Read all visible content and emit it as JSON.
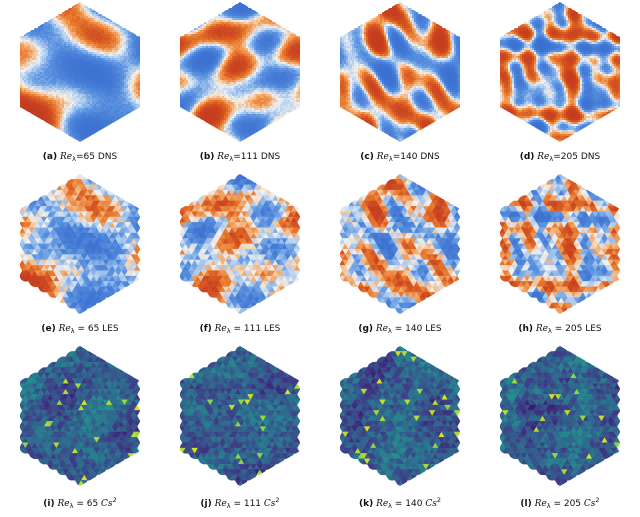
{
  "figure": {
    "panels": [
      {
        "tag": "(a)",
        "re_symbol": "Re",
        "re_sub": "λ",
        "eq": "=",
        "value": "65",
        "suffix": "DNS",
        "cs2": false,
        "kind": "dns",
        "seed": 11,
        "scale": 0.055
      },
      {
        "tag": "(b)",
        "re_symbol": "Re",
        "re_sub": "λ",
        "eq": "=",
        "value": "111",
        "suffix": "DNS",
        "cs2": false,
        "kind": "dns",
        "seed": 23,
        "scale": 0.085
      },
      {
        "tag": "(c)",
        "re_symbol": "Re",
        "re_sub": "λ",
        "eq": "=",
        "value": "140",
        "suffix": "DNS",
        "cs2": false,
        "kind": "dns",
        "seed": 37,
        "scale": 0.11
      },
      {
        "tag": "(d)",
        "re_symbol": "Re",
        "re_sub": "λ",
        "eq": "=",
        "value": "205",
        "suffix": "DNS",
        "cs2": false,
        "kind": "dns",
        "seed": 51,
        "scale": 0.16
      },
      {
        "tag": "(e)",
        "re_symbol": "Re",
        "re_sub": "λ",
        "eq": " = ",
        "value": "65",
        "suffix": "LES",
        "cs2": false,
        "kind": "les",
        "seed": 11,
        "scale": 0.055
      },
      {
        "tag": "(f)",
        "re_symbol": "Re",
        "re_sub": "λ",
        "eq": " = ",
        "value": "111",
        "suffix": "LES",
        "cs2": false,
        "kind": "les",
        "seed": 23,
        "scale": 0.085
      },
      {
        "tag": "(g)",
        "re_symbol": "Re",
        "re_sub": "λ",
        "eq": " = ",
        "value": "140",
        "suffix": "LES",
        "cs2": false,
        "kind": "les",
        "seed": 37,
        "scale": 0.11
      },
      {
        "tag": "(h)",
        "re_symbol": "Re",
        "re_sub": "λ",
        "eq": " = ",
        "value": "205",
        "suffix": "LES",
        "cs2": false,
        "kind": "les",
        "seed": 51,
        "scale": 0.16
      },
      {
        "tag": "(i)",
        "re_symbol": "Re",
        "re_sub": "λ",
        "eq": " = ",
        "value": "65",
        "suffix": "Cs",
        "cs2": true,
        "sup": "2",
        "kind": "cs",
        "seed": 71,
        "scale": 0.07
      },
      {
        "tag": "(j)",
        "re_symbol": "Re",
        "re_sub": "λ",
        "eq": " = ",
        "value": "111",
        "suffix": "Cs",
        "cs2": true,
        "sup": "2",
        "kind": "cs",
        "seed": 83,
        "scale": 0.09
      },
      {
        "tag": "(k)",
        "re_symbol": "Re",
        "re_sub": "λ",
        "eq": " = ",
        "value": "140",
        "suffix": "Cs",
        "cs2": true,
        "sup": "2",
        "kind": "cs",
        "seed": 97,
        "scale": 0.11
      },
      {
        "tag": "(l)",
        "re_symbol": "Re",
        "re_sub": "λ",
        "eq": " = ",
        "value": "205",
        "suffix": "Cs",
        "cs2": true,
        "sup": "2",
        "kind": "cs",
        "seed": 113,
        "scale": 0.14
      }
    ],
    "colormaps": {
      "coolwarm": [
        "#3a6fd0",
        "#5b93e0",
        "#a9c8ee",
        "#f2f2f0",
        "#f3b27a",
        "#e8772a",
        "#c43a1e"
      ],
      "viridis": [
        "#35176a",
        "#3e3a86",
        "#31608d",
        "#26808e",
        "#1f9c89",
        "#3bbb74",
        "#8bd646",
        "#e3e418"
      ]
    }
  }
}
